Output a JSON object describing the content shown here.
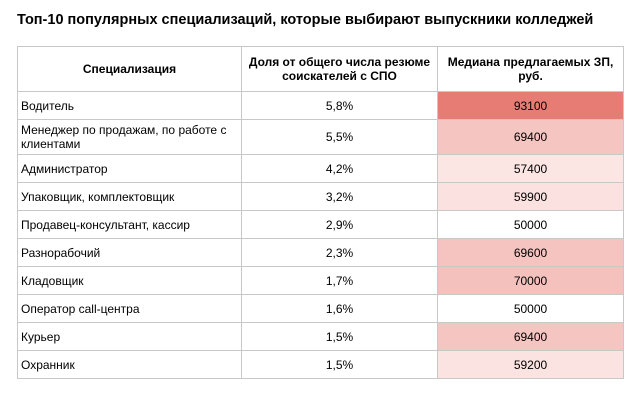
{
  "title": "Топ-10 популярных специализаций, которые выбирают выпускники колледжей",
  "table": {
    "header": [
      "Специализация",
      "Доля от общего числа резюме соискателей с СПО",
      "Медиана предлагаемых ЗП, руб."
    ],
    "rows": [
      [
        "Водитель",
        "5,8%",
        "93100"
      ],
      [
        "Менеджер по продажам, по работе с клиентами",
        "5,5%",
        "69400"
      ],
      [
        "Администратор",
        "4,2%",
        "57400"
      ],
      [
        "Упаковщик, комплектовщик",
        "3,2%",
        "59900"
      ],
      [
        "Продавец-консультант, кассир",
        "2,9%",
        "50000"
      ],
      [
        "Разнорабочий",
        "2,3%",
        "69600"
      ],
      [
        "Кладовщик",
        "1,7%",
        "70000"
      ],
      [
        "Оператор call-центра",
        "1,6%",
        "50000"
      ],
      [
        "Курьер",
        "1,5%",
        "69400"
      ],
      [
        "Охранник",
        "1,5%",
        "59200"
      ]
    ],
    "salary_colors": [
      "#e67c73",
      "#f5c5c1",
      "#fbe6e4",
      "#fbe1df",
      "#ffffff",
      "#f5c4c0",
      "#f4c1bd",
      "#ffffff",
      "#f5c5c1",
      "#fbe3e1"
    ]
  }
}
